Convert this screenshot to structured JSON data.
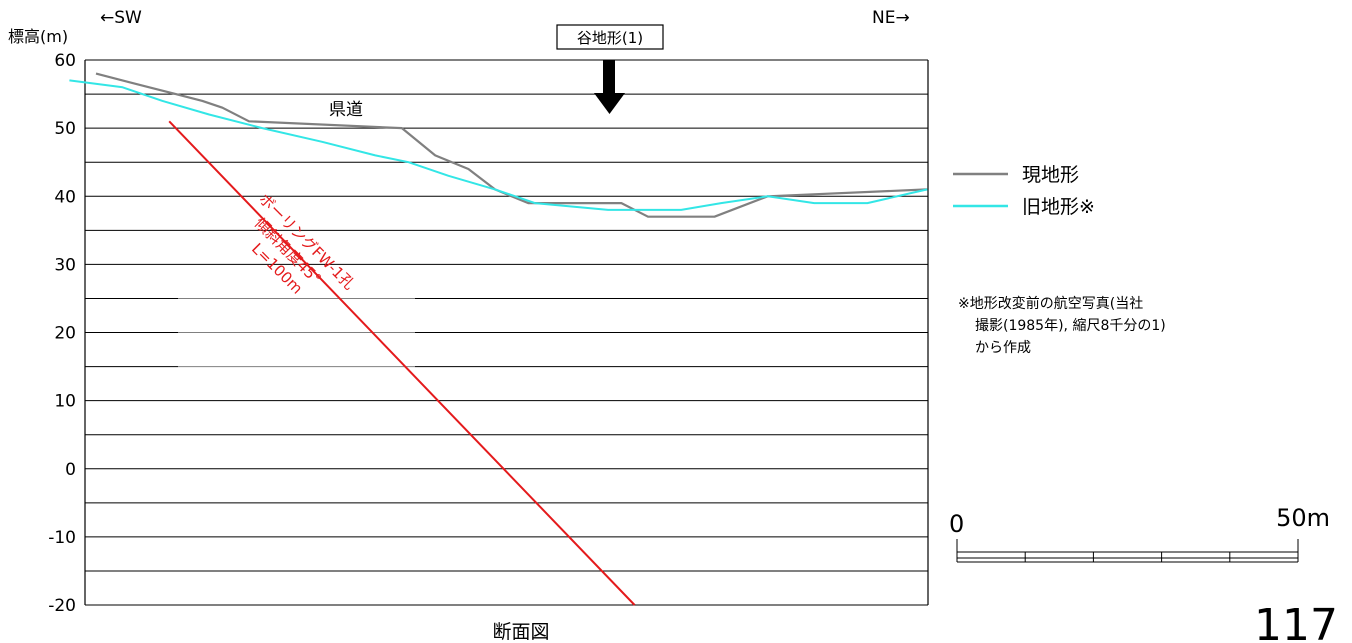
{
  "chart_data": {
    "type": "line",
    "title": "断面図",
    "ylabel": "標高(m)",
    "direction_left": "←SW",
    "direction_right": "NE→",
    "ylim": [
      -20,
      60
    ],
    "xlim": [
      0,
      125
    ],
    "yticks": [
      60,
      50,
      40,
      30,
      20,
      10,
      0,
      -10,
      -20
    ],
    "minor_gridlines": [
      55,
      45,
      35,
      25,
      15,
      5,
      -5,
      -15
    ],
    "colors": {
      "current": "#808080",
      "old": "#33e6e6",
      "borehole": "#e41a1c",
      "arrow": "#000000"
    },
    "series": [
      {
        "name": "現地形",
        "x": [
          0,
          8,
          12,
          16,
          19,
          23,
          46,
          51,
          56,
          60,
          65,
          79,
          83,
          93,
          101,
          125
        ],
        "y": [
          58,
          56,
          55,
          54,
          53,
          51,
          50,
          46,
          44,
          41,
          39,
          39,
          37,
          37,
          40,
          41
        ]
      },
      {
        "name": "旧地形※",
        "x": [
          -4,
          4,
          10,
          17,
          25,
          34,
          42,
          47,
          53,
          60,
          66,
          77,
          88,
          94,
          101,
          108,
          116,
          125
        ],
        "y": [
          57,
          56,
          54,
          52,
          50,
          48,
          46,
          45,
          43,
          41,
          39,
          38,
          38,
          39,
          40,
          39,
          39,
          41
        ]
      },
      {
        "name": "ボーリングFW-1孔",
        "x": [
          11,
          81
        ],
        "y": [
          51,
          -20
        ]
      }
    ],
    "annotations": {
      "road": "県道",
      "valley": "谷地形(1)",
      "borehole_line1": "ボーリングFW-1孔",
      "borehole_line2": "傾斜角度45°",
      "borehole_line3": "L=100m"
    },
    "legend_items": [
      {
        "label": "現地形",
        "key": "current"
      },
      {
        "label": "旧地形※",
        "key": "old"
      }
    ],
    "note_lines": [
      "※地形改変前の航空写真(当社",
      "撮影(1985年), 縮尺8千分の1)",
      "から作成"
    ],
    "scale_bar": {
      "zero": "0",
      "end": "50m",
      "divisions": 5
    }
  },
  "page_number": "117"
}
